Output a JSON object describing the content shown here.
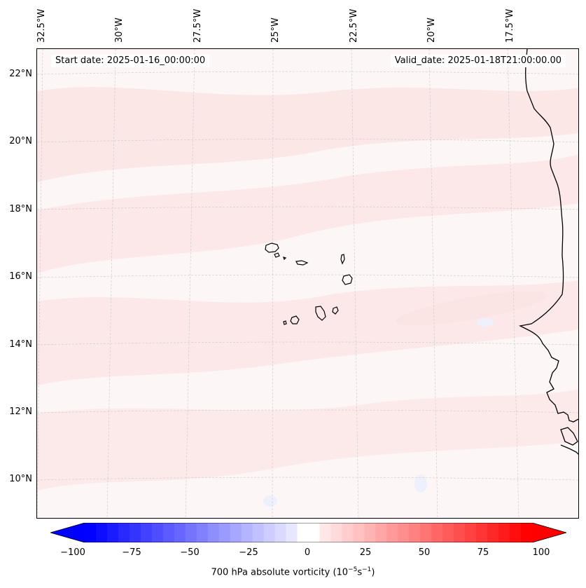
{
  "header": {
    "start_date": "Start date: 2025-01-16_00:00:00",
    "valid_date": "Valid_date: 2025-01-18T21:00:00.00"
  },
  "map": {
    "lon_labels": [
      "32.5°W",
      "30°W",
      "27.5°W",
      "25°W",
      "22.5°W",
      "20°W",
      "17.5°W"
    ],
    "lat_labels": [
      "22°N",
      "20°N",
      "18°N",
      "16°N",
      "14°N",
      "12°N",
      "10°N"
    ],
    "background_color": "#fdf6f6",
    "field_tint_color": "#fbe3e3",
    "negative_tint_color": "#eef0fc",
    "coastline_color": "#000000"
  },
  "colorbar": {
    "ticks": [
      "−100",
      "−75",
      "−50",
      "−25",
      "0",
      "25",
      "50",
      "75",
      "100"
    ],
    "min": -100,
    "max": 100,
    "low_color": "#0000ff",
    "mid_color": "#ffffff",
    "high_color": "#ff0000",
    "label_prefix": "700 hPa absolute vorticity (10",
    "label_exp1": "−5",
    "label_mid": "s",
    "label_exp2": "−1",
    "label_suffix": ")"
  }
}
